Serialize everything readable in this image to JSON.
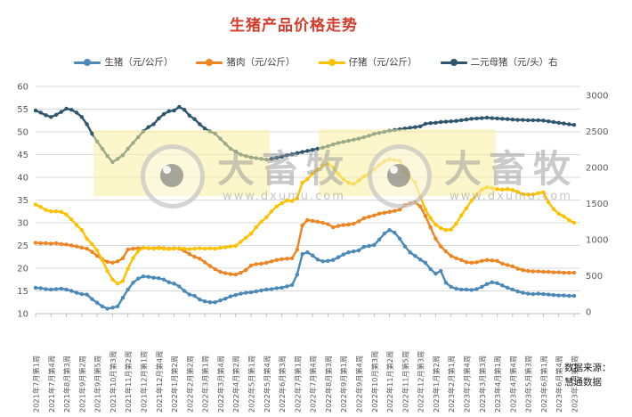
{
  "title": "生猪产品价格走势",
  "colors": {
    "title": "#d63a2a",
    "axis_text": "#595959",
    "gridline": "#d9d9d9",
    "axis_line": "#bfbfbf"
  },
  "watermark": {
    "brand": "大畜牧",
    "url": "www.dxumu.com"
  },
  "source": {
    "line1": "数据来源：",
    "line2": "慧通数据"
  },
  "chart_data": {
    "type": "line",
    "title": "生猪产品价格走势",
    "legend_position": "top",
    "grid": true,
    "label_every_n_points": 3,
    "left_axis": {
      "min": 10,
      "max": 60,
      "step": 5
    },
    "right_axis": {
      "min": 0,
      "max": 3000,
      "step": 500
    },
    "x_labels": [
      "2021年7月第1周",
      "2021年7月第4周",
      "2021年8月第3周",
      "2021年9月第2周",
      "2021年9月第5周",
      "2021年10月第3周",
      "2021年11月第2周",
      "2021年12月第1周",
      "2021年12月第4周",
      "2022年1月第2周",
      "2022年2月第2周",
      "2022年3月第1周",
      "2022年3月第4周",
      "2022年4月第2周",
      "2022年5月第1周",
      "2022年5月第4周",
      "2022年6月第3周",
      "2022年7月第1周",
      "2022年7月第4周",
      "2022年8月第3周",
      "2022年9月第1周",
      "2022年9月第4周",
      "2022年10月第3周",
      "2022年11月第2周",
      "2022年11月第5周",
      "2022年12月第3周",
      "2023年1月第2周",
      "2023年2月第1周",
      "2023年2月第4周",
      "2023年3月第3周",
      "2023年4月第1周",
      "2023年4月第4周",
      "2023年5月第3周",
      "2023年6月第1周",
      "2023年6月第4周",
      "2023年7月第3周"
    ],
    "series": [
      {
        "name": "生猪（元/公斤）",
        "axis": "left",
        "color": "#4a89b8",
        "values": [
          15.7,
          15.6,
          15.4,
          15.3,
          15.4,
          15.5,
          15.3,
          15.0,
          14.6,
          14.3,
          14.2,
          13.2,
          12.4,
          11.6,
          11.1,
          11.3,
          11.6,
          13.5,
          15.3,
          16.8,
          17.7,
          18.2,
          18.1,
          17.9,
          17.8,
          17.5,
          16.9,
          16.6,
          16.0,
          15.0,
          14.2,
          13.9,
          13.1,
          12.7,
          12.5,
          12.5,
          12.9,
          13.3,
          13.8,
          14.1,
          14.4,
          14.6,
          14.7,
          14.9,
          15.1,
          15.3,
          15.4,
          15.6,
          15.7,
          16.0,
          16.3,
          18.6,
          23.1,
          23.5,
          22.8,
          21.9,
          21.5,
          21.6,
          21.8,
          22.4,
          23.0,
          23.5,
          23.7,
          23.9,
          24.7,
          24.9,
          25.1,
          26.3,
          27.6,
          28.4,
          27.8,
          26.5,
          24.8,
          23.5,
          22.7,
          21.9,
          21.2,
          19.8,
          18.8,
          19.4,
          16.8,
          15.9,
          15.5,
          15.3,
          15.3,
          15.2,
          15.4,
          15.9,
          16.5,
          16.9,
          16.7,
          16.2,
          15.7,
          15.3,
          14.9,
          14.6,
          14.4,
          14.3,
          14.4,
          14.3,
          14.2,
          14.1,
          14.0,
          14.0,
          13.9,
          13.9
        ]
      },
      {
        "name": "猪肉（元/公斤）",
        "axis": "left",
        "color": "#ee8422",
        "values": [
          25.6,
          25.5,
          25.5,
          25.4,
          25.5,
          25.3,
          25.2,
          25.0,
          24.8,
          24.5,
          24.3,
          23.6,
          22.7,
          22.0,
          21.4,
          21.2,
          21.5,
          22.2,
          24.1,
          24.3,
          24.4,
          24.5,
          24.4,
          24.4,
          24.5,
          24.4,
          24.3,
          24.4,
          24.3,
          23.8,
          23.1,
          22.5,
          22.1,
          21.3,
          20.5,
          19.8,
          19.2,
          18.9,
          18.7,
          18.6,
          19.0,
          19.6,
          20.6,
          20.9,
          21.0,
          21.2,
          21.5,
          21.8,
          22.0,
          22.1,
          22.2,
          24.1,
          29.4,
          30.6,
          30.4,
          30.2,
          30.0,
          29.7,
          29.0,
          29.3,
          29.5,
          29.6,
          29.8,
          30.3,
          31.0,
          31.3,
          31.6,
          32.0,
          32.2,
          32.4,
          32.6,
          32.9,
          33.9,
          34.3,
          34.5,
          33.6,
          31.5,
          29.0,
          26.5,
          24.8,
          23.7,
          22.7,
          22.2,
          21.8,
          21.3,
          21.2,
          21.3,
          21.6,
          21.8,
          21.7,
          21.6,
          21.0,
          20.7,
          20.4,
          19.9,
          19.6,
          19.4,
          19.3,
          19.3,
          19.2,
          19.2,
          19.1,
          19.1,
          19.0,
          19.0,
          19.0
        ]
      },
      {
        "name": "仔猪（元/公斤）",
        "axis": "left",
        "color": "#fdc100",
        "values": [
          34.0,
          33.5,
          32.8,
          32.5,
          32.5,
          32.4,
          31.8,
          30.7,
          29.5,
          28.4,
          26.5,
          25.3,
          23.9,
          21.8,
          19.4,
          17.5,
          16.6,
          17.2,
          19.9,
          22.2,
          23.8,
          24.5,
          24.4,
          24.3,
          24.4,
          24.3,
          24.2,
          24.3,
          24.4,
          24.3,
          24.2,
          24.3,
          24.4,
          24.3,
          24.4,
          24.3,
          24.5,
          24.6,
          24.8,
          24.9,
          25.8,
          26.7,
          27.6,
          29.0,
          30.2,
          31.2,
          32.5,
          33.6,
          34.3,
          34.9,
          34.8,
          35.4,
          38.8,
          39.6,
          40.8,
          41.7,
          42.5,
          43.0,
          42.2,
          40.8,
          39.6,
          38.8,
          38.5,
          39.3,
          40.2,
          40.8,
          41.7,
          42.7,
          43.5,
          44.0,
          43.8,
          43.6,
          41.4,
          40.0,
          38.8,
          35.8,
          32.9,
          31.0,
          29.6,
          28.8,
          28.4,
          28.5,
          29.8,
          31.6,
          33.2,
          34.9,
          36.2,
          37.3,
          37.8,
          37.6,
          37.4,
          37.3,
          37.4,
          37.2,
          36.8,
          36.3,
          36.2,
          36.2,
          36.5,
          36.7,
          34.5,
          33.0,
          32.0,
          31.4,
          30.6,
          30.0
        ]
      },
      {
        "name": "二元母猪（元/头）右",
        "axis": "right",
        "color": "#2d566e",
        "values": [
          2790,
          2760,
          2725,
          2700,
          2730,
          2770,
          2815,
          2800,
          2760,
          2700,
          2600,
          2470,
          2360,
          2260,
          2160,
          2075,
          2120,
          2170,
          2260,
          2340,
          2420,
          2500,
          2560,
          2600,
          2680,
          2740,
          2780,
          2790,
          2840,
          2800,
          2720,
          2670,
          2600,
          2540,
          2500,
          2470,
          2400,
          2330,
          2260,
          2220,
          2180,
          2160,
          2140,
          2130,
          2120,
          2110,
          2120,
          2135,
          2150,
          2170,
          2185,
          2200,
          2215,
          2230,
          2245,
          2260,
          2275,
          2295,
          2320,
          2340,
          2355,
          2370,
          2385,
          2400,
          2420,
          2440,
          2465,
          2480,
          2495,
          2510,
          2520,
          2530,
          2540,
          2550,
          2560,
          2570,
          2605,
          2615,
          2620,
          2630,
          2635,
          2640,
          2645,
          2655,
          2665,
          2675,
          2680,
          2685,
          2690,
          2685,
          2680,
          2675,
          2670,
          2665,
          2660,
          2660,
          2655,
          2655,
          2655,
          2650,
          2640,
          2630,
          2620,
          2610,
          2600,
          2590
        ]
      }
    ]
  }
}
